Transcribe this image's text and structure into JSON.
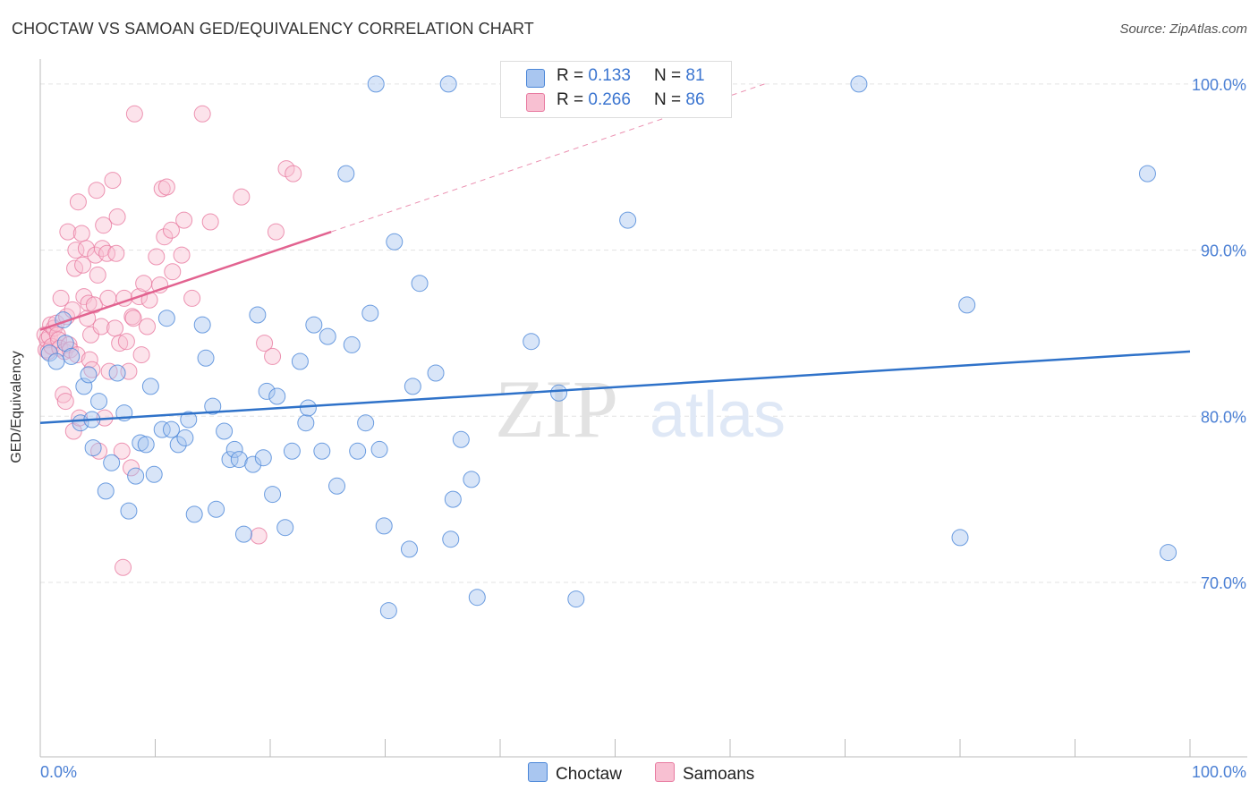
{
  "title": "CHOCTAW VS SAMOAN GED/EQUIVALENCY CORRELATION CHART",
  "source": "Source: ZipAtlas.com",
  "watermark": {
    "zip": "ZIP",
    "atlas": "atlas"
  },
  "legend": {
    "rows": [
      {
        "r_label": "R =",
        "r_value": "0.133",
        "n_label": "N =",
        "n_value": "81"
      },
      {
        "r_label": "R =",
        "r_value": "0.266",
        "n_label": "N =",
        "n_value": "86"
      }
    ]
  },
  "bottom_legend": [
    "Choctaw",
    "Samoans"
  ],
  "colors": {
    "choctaw_fill": "#a9c6f0",
    "choctaw_stroke": "#4a86d8",
    "choctaw_line": "#2f72c9",
    "samoan_fill": "#f8c0d2",
    "samoan_stroke": "#e87aa0",
    "samoan_line": "#e26390",
    "tick_label": "#4a7fd4",
    "grid": "#e3e3e3"
  },
  "chart_data": {
    "type": "scatter",
    "title": "CHOCTAW VS SAMOAN GED/EQUIVALENCY CORRELATION CHART",
    "xlabel": "",
    "ylabel": "GED/Equivalency",
    "xlim": [
      0,
      100
    ],
    "ylim": [
      59.5,
      101.5
    ],
    "x_tick_labels": [
      "0.0%",
      "100.0%"
    ],
    "y_ticks": [
      70,
      80,
      90,
      100
    ],
    "y_tick_labels": [
      "70.0%",
      "80.0%",
      "90.0%",
      "100.0%"
    ],
    "grid": true,
    "legend_position": "top-center",
    "series": [
      {
        "name": "Choctaw",
        "R": 0.133,
        "N": 81,
        "trend": {
          "x": [
            0,
            100
          ],
          "y": [
            79.6,
            83.9
          ]
        },
        "points": [
          [
            0.8,
            83.8
          ],
          [
            1.4,
            83.3
          ],
          [
            2.0,
            85.8
          ],
          [
            2.2,
            84.4
          ],
          [
            2.7,
            83.6
          ],
          [
            3.5,
            79.6
          ],
          [
            3.8,
            81.8
          ],
          [
            4.2,
            82.5
          ],
          [
            4.6,
            78.1
          ],
          [
            5.1,
            80.9
          ],
          [
            5.7,
            75.5
          ],
          [
            6.2,
            77.2
          ],
          [
            6.7,
            82.6
          ],
          [
            7.3,
            80.2
          ],
          [
            7.7,
            74.3
          ],
          [
            8.3,
            76.4
          ],
          [
            8.7,
            78.4
          ],
          [
            9.2,
            78.3
          ],
          [
            9.6,
            81.8
          ],
          [
            9.9,
            76.5
          ],
          [
            10.6,
            79.2
          ],
          [
            11.0,
            85.9
          ],
          [
            11.4,
            79.2
          ],
          [
            12.0,
            78.3
          ],
          [
            12.6,
            78.7
          ],
          [
            12.9,
            79.8
          ],
          [
            13.4,
            74.1
          ],
          [
            14.1,
            85.5
          ],
          [
            14.4,
            83.5
          ],
          [
            15.0,
            80.6
          ],
          [
            15.3,
            74.4
          ],
          [
            16.0,
            79.1
          ],
          [
            16.5,
            77.4
          ],
          [
            16.9,
            78.0
          ],
          [
            17.3,
            77.4
          ],
          [
            17.7,
            72.9
          ],
          [
            18.5,
            77.1
          ],
          [
            18.9,
            86.1
          ],
          [
            19.4,
            77.5
          ],
          [
            19.7,
            81.5
          ],
          [
            20.2,
            75.3
          ],
          [
            20.6,
            81.2
          ],
          [
            21.3,
            73.3
          ],
          [
            21.9,
            77.9
          ],
          [
            22.6,
            83.3
          ],
          [
            23.1,
            79.6
          ],
          [
            23.3,
            80.5
          ],
          [
            23.8,
            85.5
          ],
          [
            24.5,
            77.9
          ],
          [
            25.0,
            84.8
          ],
          [
            25.8,
            75.8
          ],
          [
            26.6,
            94.6
          ],
          [
            27.1,
            84.3
          ],
          [
            27.6,
            77.9
          ],
          [
            28.3,
            79.6
          ],
          [
            28.7,
            86.2
          ],
          [
            29.2,
            100.0
          ],
          [
            29.5,
            78.0
          ],
          [
            29.9,
            73.4
          ],
          [
            30.3,
            68.3
          ],
          [
            30.8,
            90.5
          ],
          [
            32.1,
            72.0
          ],
          [
            32.4,
            81.8
          ],
          [
            33.0,
            88.0
          ],
          [
            34.4,
            82.6
          ],
          [
            35.5,
            100.0
          ],
          [
            35.7,
            72.6
          ],
          [
            35.9,
            75.0
          ],
          [
            36.6,
            78.6
          ],
          [
            37.5,
            76.2
          ],
          [
            38.0,
            69.1
          ],
          [
            42.7,
            84.5
          ],
          [
            45.1,
            81.4
          ],
          [
            46.6,
            69.0
          ],
          [
            51.1,
            91.8
          ],
          [
            71.2,
            100.0
          ],
          [
            80.0,
            72.7
          ],
          [
            80.6,
            86.7
          ],
          [
            96.3,
            94.6
          ],
          [
            98.1,
            71.8
          ],
          [
            4.5,
            79.8
          ]
        ]
      },
      {
        "name": "Samoans",
        "R": 0.266,
        "N": 86,
        "trend": {
          "x": [
            0,
            25.3
          ],
          "y": [
            85.2,
            91.1
          ],
          "dashed_extension": {
            "x": [
              25.3,
              63
            ],
            "y": [
              91.1,
              100
            ]
          }
        },
        "points": [
          [
            0.4,
            84.9
          ],
          [
            0.5,
            84.0
          ],
          [
            0.6,
            84.6
          ],
          [
            0.7,
            83.9
          ],
          [
            0.8,
            84.8
          ],
          [
            0.9,
            85.5
          ],
          [
            1.0,
            84.2
          ],
          [
            1.2,
            85.3
          ],
          [
            1.4,
            85.6
          ],
          [
            1.5,
            84.9
          ],
          [
            1.6,
            84.6
          ],
          [
            1.7,
            84.1
          ],
          [
            1.8,
            87.1
          ],
          [
            2.0,
            81.3
          ],
          [
            2.1,
            83.9
          ],
          [
            2.2,
            80.9
          ],
          [
            2.3,
            86.0
          ],
          [
            2.4,
            91.1
          ],
          [
            2.5,
            84.3
          ],
          [
            2.6,
            84.0
          ],
          [
            2.8,
            86.4
          ],
          [
            2.9,
            79.1
          ],
          [
            3.0,
            88.9
          ],
          [
            3.1,
            90.0
          ],
          [
            3.2,
            83.7
          ],
          [
            3.3,
            92.9
          ],
          [
            3.4,
            79.9
          ],
          [
            3.6,
            91.0
          ],
          [
            3.7,
            89.1
          ],
          [
            3.8,
            87.2
          ],
          [
            4.0,
            90.1
          ],
          [
            4.1,
            85.9
          ],
          [
            4.2,
            86.8
          ],
          [
            4.3,
            83.4
          ],
          [
            4.4,
            84.9
          ],
          [
            4.5,
            82.8
          ],
          [
            4.7,
            86.7
          ],
          [
            4.8,
            89.7
          ],
          [
            4.9,
            93.6
          ],
          [
            5.0,
            88.5
          ],
          [
            5.1,
            77.9
          ],
          [
            5.3,
            85.4
          ],
          [
            5.4,
            90.1
          ],
          [
            5.5,
            91.5
          ],
          [
            5.6,
            79.9
          ],
          [
            5.8,
            89.8
          ],
          [
            5.9,
            87.1
          ],
          [
            6.0,
            82.7
          ],
          [
            6.3,
            94.2
          ],
          [
            6.5,
            85.3
          ],
          [
            6.6,
            89.8
          ],
          [
            6.7,
            92.0
          ],
          [
            6.9,
            84.4
          ],
          [
            7.1,
            77.9
          ],
          [
            7.2,
            70.9
          ],
          [
            7.3,
            87.1
          ],
          [
            7.5,
            84.5
          ],
          [
            7.7,
            82.7
          ],
          [
            7.9,
            76.9
          ],
          [
            8.0,
            86.0
          ],
          [
            8.2,
            98.2
          ],
          [
            8.6,
            87.2
          ],
          [
            8.8,
            83.7
          ],
          [
            9.0,
            88.0
          ],
          [
            9.3,
            85.4
          ],
          [
            9.5,
            87.0
          ],
          [
            10.1,
            89.6
          ],
          [
            10.4,
            87.9
          ],
          [
            10.6,
            93.7
          ],
          [
            10.8,
            90.8
          ],
          [
            11.0,
            93.8
          ],
          [
            11.4,
            91.2
          ],
          [
            11.5,
            88.7
          ],
          [
            12.3,
            89.7
          ],
          [
            12.5,
            91.8
          ],
          [
            13.2,
            87.1
          ],
          [
            14.1,
            98.2
          ],
          [
            14.8,
            91.7
          ],
          [
            17.5,
            93.2
          ],
          [
            19.0,
            72.8
          ],
          [
            19.5,
            84.4
          ],
          [
            20.2,
            83.6
          ],
          [
            20.5,
            91.1
          ],
          [
            21.4,
            94.9
          ],
          [
            22.0,
            94.6
          ],
          [
            8.1,
            85.9
          ]
        ]
      }
    ]
  }
}
